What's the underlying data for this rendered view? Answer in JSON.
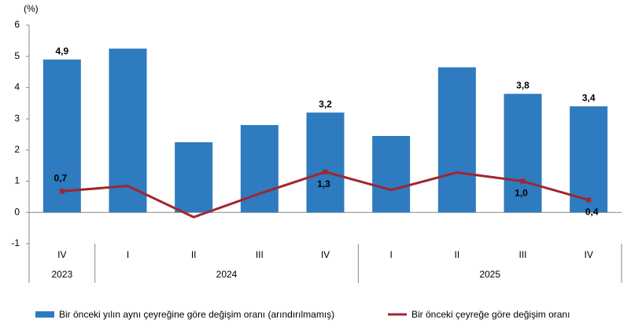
{
  "chart_data": {
    "type": "combo",
    "y_unit_label": "(%)",
    "categories": [
      "IV",
      "I",
      "II",
      "III",
      "IV",
      "I",
      "II",
      "III",
      "IV"
    ],
    "x_groups": [
      "2023",
      "2024",
      "2024",
      "2024",
      "2024",
      "2025",
      "2025",
      "2025",
      "2025"
    ],
    "ylim": [
      -1,
      6
    ],
    "yticks": [
      -1,
      0,
      1,
      2,
      3,
      4,
      5,
      6
    ],
    "grid": false,
    "legend": "bottom",
    "series": [
      {
        "name": "Bir önceki yılın aynı çeyreğine göre değişim oranı (arındırılmamış)",
        "type": "bar",
        "color": "#2e7bc0",
        "values": [
          4.9,
          5.25,
          2.25,
          2.8,
          3.2,
          2.45,
          4.65,
          3.8,
          3.4
        ],
        "value_labels": [
          "4,9",
          null,
          null,
          null,
          "3,2",
          null,
          null,
          "3,8",
          "3,4"
        ]
      },
      {
        "name": "Bir önceki çeyreğe göre değişim oranı",
        "type": "line",
        "color": "#a0262e",
        "values": [
          0.68,
          0.85,
          -0.15,
          0.6,
          1.3,
          0.72,
          1.28,
          1.0,
          0.4
        ],
        "value_labels": [
          "0,7",
          null,
          null,
          null,
          "1,3",
          null,
          null,
          "1,0",
          "0,4"
        ]
      }
    ]
  }
}
